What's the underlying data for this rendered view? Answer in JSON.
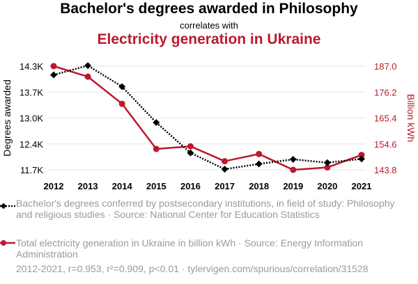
{
  "header": {
    "title_main": "Bachelor's degrees awarded in Philosophy",
    "connector": "correlates with",
    "title_second": "Electricity generation in Ukraine"
  },
  "chart_data": {
    "type": "line",
    "x": [
      2012,
      2013,
      2014,
      2015,
      2016,
      2017,
      2018,
      2019,
      2020,
      2021
    ],
    "series": [
      {
        "name": "Bachelor's degrees awarded in Philosophy",
        "axis": "left",
        "color": "#000000",
        "style": "dotted",
        "marker": "diamond",
        "values": [
          14080,
          14314,
          13785,
          12886,
          12124,
          11717,
          11848,
          11963,
          11880,
          11975
        ]
      },
      {
        "name": "Electricity generation in Ukraine",
        "axis": "right",
        "color": "#ba1a2c",
        "style": "solid",
        "marker": "circle",
        "values": [
          187.0,
          182.6,
          171.3,
          152.5,
          153.6,
          147.4,
          150.4,
          143.8,
          144.8,
          150.0
        ]
      }
    ],
    "ylabel_left": "Degrees awarded",
    "ylabel_right": "Billion kWh",
    "yticks_left": [
      "11.7K",
      "12.4K",
      "13.0K",
      "13.7K",
      "14.3K"
    ],
    "yticks_right": [
      "143.8",
      "154.6",
      "165.4",
      "176.2",
      "187.0"
    ],
    "ylim_left": [
      11700,
      14300
    ],
    "ylim_right": [
      143.8,
      187.0
    ],
    "grid": true
  },
  "legend": {
    "series1": "Bachelor's degrees conferred by postsecondary institutions, in field of study: Philosophy and religious studies · Source: National Center for Education Statistics",
    "series2": "Total electricity generation in Ukraine in billion kWh · Source: Energy Information Administration"
  },
  "footer": "2012-2021, r=0.953, r²=0.909, p<0.01 · tylervigen.com/spurious/correlation/31528",
  "colors": {
    "left": "#000000",
    "right": "#ba1a2c",
    "muted": "#9a9a9a",
    "grid": "#e6e6e6"
  }
}
